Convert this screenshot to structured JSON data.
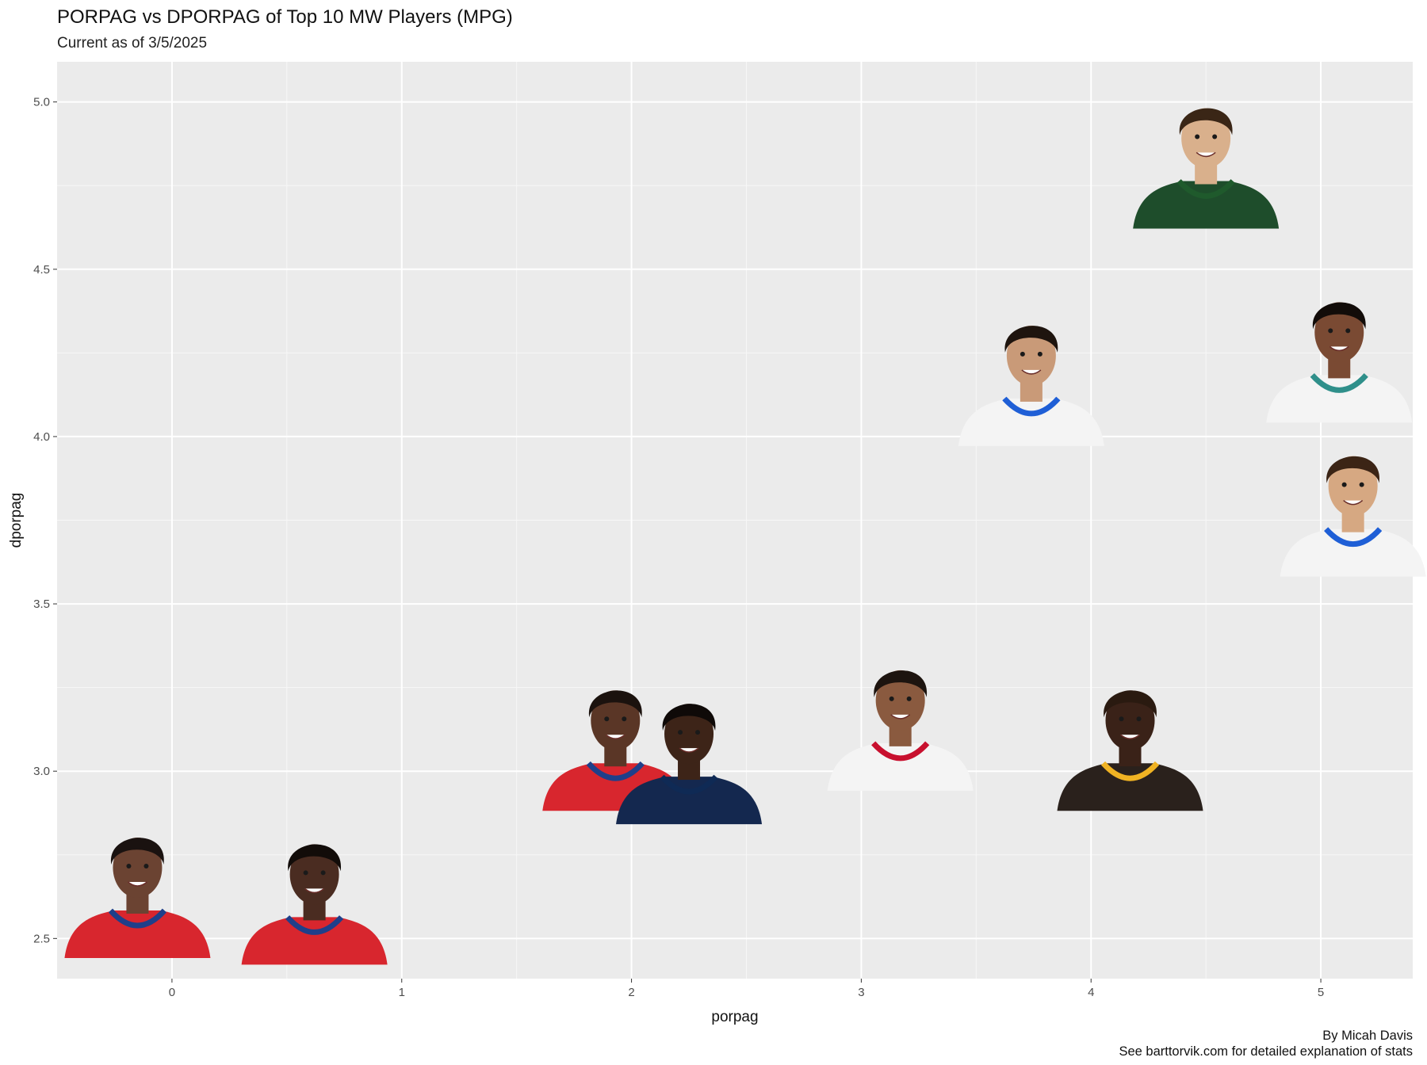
{
  "chart_data": {
    "type": "scatter",
    "title": "PORPAG vs DPORPAG of Top 10 MW Players (MPG)",
    "subtitle": "Current as of 3/5/2025",
    "xlabel": "porpag",
    "ylabel": "dporpag",
    "xlim": [
      -0.5,
      5.4
    ],
    "ylim": [
      2.38,
      5.12
    ],
    "xticks": [
      0,
      1,
      2,
      3,
      4,
      5
    ],
    "yticks": [
      2.5,
      3.0,
      3.5,
      4.0,
      4.5,
      5.0
    ],
    "ytick_labels": [
      "2.5",
      "3.0",
      "3.5",
      "4.0",
      "4.5",
      "5.0"
    ],
    "grid": true,
    "marker": "player-headshot",
    "points": [
      {
        "x": -0.15,
        "y": 2.65,
        "jersey": "red",
        "trim": "#1f3f8a"
      },
      {
        "x": 0.62,
        "y": 2.63,
        "jersey": "red",
        "trim": "#1f3f8a"
      },
      {
        "x": 1.93,
        "y": 3.09,
        "jersey": "red",
        "trim": "#1f3f8a"
      },
      {
        "x": 2.25,
        "y": 3.05,
        "jersey": "navy",
        "trim": "#0f2a55"
      },
      {
        "x": 3.17,
        "y": 3.15,
        "jersey": "white",
        "trim": "#c8102e"
      },
      {
        "x": 4.17,
        "y": 3.09,
        "jersey": "black",
        "trim": "#f0b323"
      },
      {
        "x": 3.74,
        "y": 4.18,
        "jersey": "white",
        "trim": "#1f5fd6"
      },
      {
        "x": 4.5,
        "y": 4.83,
        "jersey": "green",
        "trim": "#1f5a2c"
      },
      {
        "x": 5.08,
        "y": 4.25,
        "jersey": "white",
        "trim": "#2f8f8a"
      },
      {
        "x": 5.14,
        "y": 3.79,
        "jersey": "white",
        "trim": "#1f5fd6"
      }
    ]
  },
  "caption": {
    "line1": "By Micah Davis",
    "line2": "See barttorvik.com for detailed explanation of stats"
  }
}
